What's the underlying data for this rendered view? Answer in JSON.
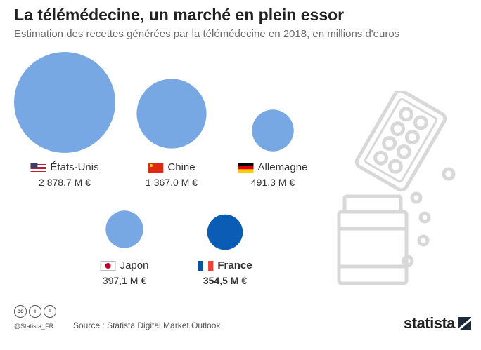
{
  "header": {
    "title": "La télémédecine, un marché en plein essor",
    "subtitle": "Estimation des recettes générées par la télémédecine en 2018, en millions d'euros"
  },
  "chart_data": {
    "type": "bubble",
    "title": "La télémédecine, un marché en plein essor",
    "subtitle": "Estimation des recettes générées par la télémédecine en 2018, en millions d'euros",
    "unit": "M €",
    "colors": {
      "default": "#78a8e4",
      "highlight": "#0a5cb4"
    },
    "points": [
      {
        "country": "États-Unis",
        "value": 2878.7,
        "value_label": "2 878,7 M €",
        "flag": "flag-us-icon",
        "highlight": false
      },
      {
        "country": "Chine",
        "value": 1367.0,
        "value_label": "1 367,0 M €",
        "flag": "flag-cn-icon",
        "highlight": false
      },
      {
        "country": "Allemagne",
        "value": 491.3,
        "value_label": "491,3 M €",
        "flag": "flag-de-icon",
        "highlight": false
      },
      {
        "country": "Japon",
        "value": 397.1,
        "value_label": "397,1 M €",
        "flag": "flag-jp-icon",
        "highlight": false
      },
      {
        "country": "France",
        "value": 354.5,
        "value_label": "354,5 M €",
        "flag": "flag-fr-icon",
        "highlight": true
      }
    ]
  },
  "footer": {
    "handle": "@Statista_FR",
    "source": "Source : Statista Digital Market Outlook",
    "brand": "statista",
    "license_icons": [
      "cc-icon",
      "by-icon",
      "nd-icon"
    ]
  }
}
